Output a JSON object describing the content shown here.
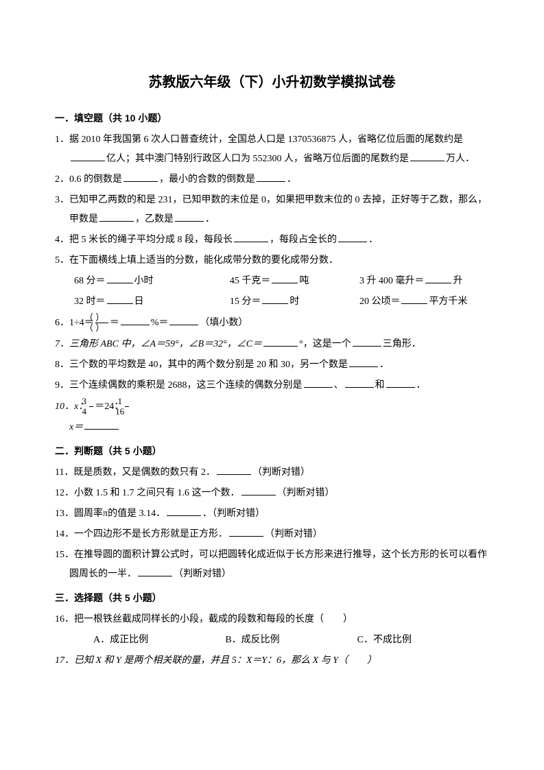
{
  "title": "苏教版六年级（下）小升初数学模拟试卷",
  "s1": {
    "heading": "一．填空题（共 10 小题）"
  },
  "q1": {
    "a": "1．据 2010 年我国第 6 次人口普查统计，全国总人口是 1370536875 人，省略亿位后面的尾数约是",
    "b": "亿人；其中澳门特别行政区人口为 552300 人，省略万位后面的尾数约是",
    "c": "万人．"
  },
  "q2": {
    "a": "2．0.6 的倒数是",
    "b": "，最小的合数的倒数是",
    "c": "．"
  },
  "q3": {
    "a": "3．已知甲乙两数的和是 231，已知甲数的末位是 0，如果把甲数末位的 0 去掉，正好等于乙数，那么，甲数是",
    "b": "，乙数是",
    "c": "．"
  },
  "q4": {
    "a": "4．把 5 米长的绳子平均分成 8 段，每段长",
    "b": "，每段占全长的",
    "c": "．"
  },
  "q5": {
    "a": "5．在下面横线上填上适当的分数，能化成带分数的要化成带分数．",
    "r1a": "68 分＝",
    "r1b": "小时",
    "r1c": "45 千克＝",
    "r1d": "吨",
    "r1e": "3 升 400 毫升＝",
    "r1f": "升",
    "r2a": "32 时＝",
    "r2b": "日",
    "r2c": "15 分＝",
    "r2d": "时",
    "r2e": "20 公顷＝",
    "r2f": "平方千米"
  },
  "q6": {
    "a": "6．1÷4＝",
    "eq1": "＝",
    "pct": "%＝",
    "tail": "（填小数）",
    "fn": "（  ）",
    "fd": "（  ）"
  },
  "q7": {
    "a": "7．三角形 ABC 中，∠A＝59°，∠B＝32°，∠C＝",
    "b": "°，这是一个",
    "c": "三角形．"
  },
  "q8": {
    "a": "8．三个数的平均数是 40，其中的两个数分别是 20 和 30，另一个数是",
    "b": "．"
  },
  "q9": {
    "a": "9．三个连续偶数的乘积是 2688，这三个连续的偶数分别是",
    "b": "、",
    "c": "和",
    "d": "．"
  },
  "q10": {
    "a": "10．x：",
    "b": "＝24：",
    "c": "x＝",
    "f1n": "3",
    "f1d": "4",
    "f2n": "1",
    "f2d": "16"
  },
  "s2": {
    "heading": "二．判断题（共 5 小题）"
  },
  "q11": {
    "a": "11．既是质数，又是偶数的数只有 2．",
    "b": "（判断对错）"
  },
  "q12": {
    "a": "12．小数 1.5 和 1.7 之间只有 1.6 这一个数．",
    "b": "（判断对错）"
  },
  "q13": {
    "a": "13．圆周率π的值是 3.14．",
    "b": "．（判断对错）"
  },
  "q14": {
    "a": "14．一个四边形不是长方形就是正方形．",
    "b": "（判断对错）"
  },
  "q15": {
    "a": "15．在推导圆的面积计算公式时，可以把圆转化成近似于长方形来进行推导，这个长方形的长可以看作圆周长的一半．",
    "b": "（判断对错）"
  },
  "s3": {
    "heading": "三．选择题（共 5 小题）"
  },
  "q16": {
    "a": "16．把一根铁丝截成同样长的小段，截成的段数和每段的长度（　　）",
    "oA": "A．成正比例",
    "oB": "B．成反比例",
    "oC": "C．不成比例"
  },
  "q17": {
    "a": "17．已知 X 和 Y 是两个相关联的量，并且 5：X＝Y：6，那么 X 与 Y（　　）"
  }
}
